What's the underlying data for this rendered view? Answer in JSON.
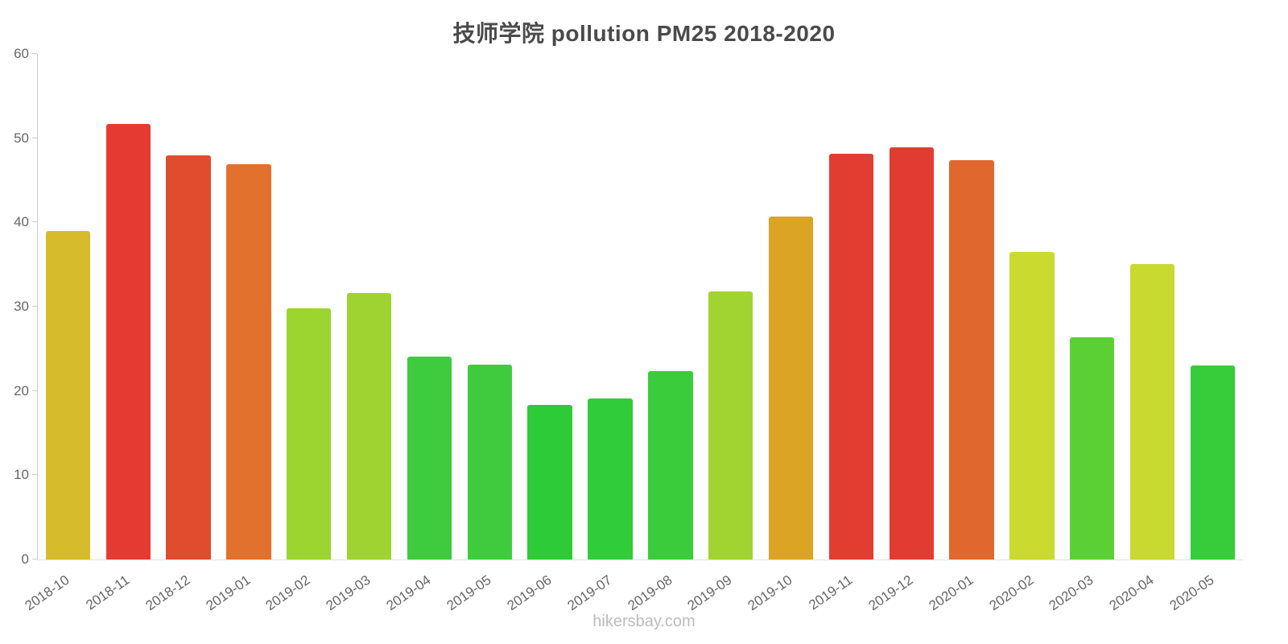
{
  "footer": "hikersbay.com",
  "chart_data": {
    "type": "bar",
    "title": "技师学院 pollution PM25 2018-2020",
    "categories": [
      "2018-10",
      "2018-11",
      "2018-12",
      "2019-01",
      "2019-02",
      "2019-03",
      "2019-04",
      "2019-05",
      "2019-06",
      "2019-07",
      "2019-08",
      "2019-09",
      "2019-10",
      "2019-11",
      "2019-12",
      "2020-01",
      "2020-02",
      "2020-03",
      "2020-04",
      "2020-05"
    ],
    "values": [
      39.0,
      51.7,
      48.0,
      46.9,
      29.8,
      31.6,
      24.1,
      23.1,
      18.3,
      19.1,
      22.4,
      31.8,
      40.7,
      48.2,
      48.9,
      47.4,
      36.5,
      26.4,
      35.1,
      23.0
    ],
    "colors": [
      "#d6bb2a",
      "#e53a31",
      "#e04c2e",
      "#e1712d",
      "#9cd430",
      "#9ed331",
      "#3ecc3e",
      "#3ecc3e",
      "#2ecb38",
      "#31cc39",
      "#3bcc3c",
      "#a2d431",
      "#dca424",
      "#e23d30",
      "#e23b31",
      "#e0672e",
      "#cada2f",
      "#5ad034",
      "#c8da30",
      "#37cc3a"
    ],
    "ylim": [
      0,
      60
    ],
    "yticks": [
      0,
      10,
      20,
      30,
      40,
      50,
      60
    ],
    "xlabel": "",
    "ylabel": "",
    "grid": false,
    "legend": false,
    "x_label_rotation_deg": -35
  }
}
